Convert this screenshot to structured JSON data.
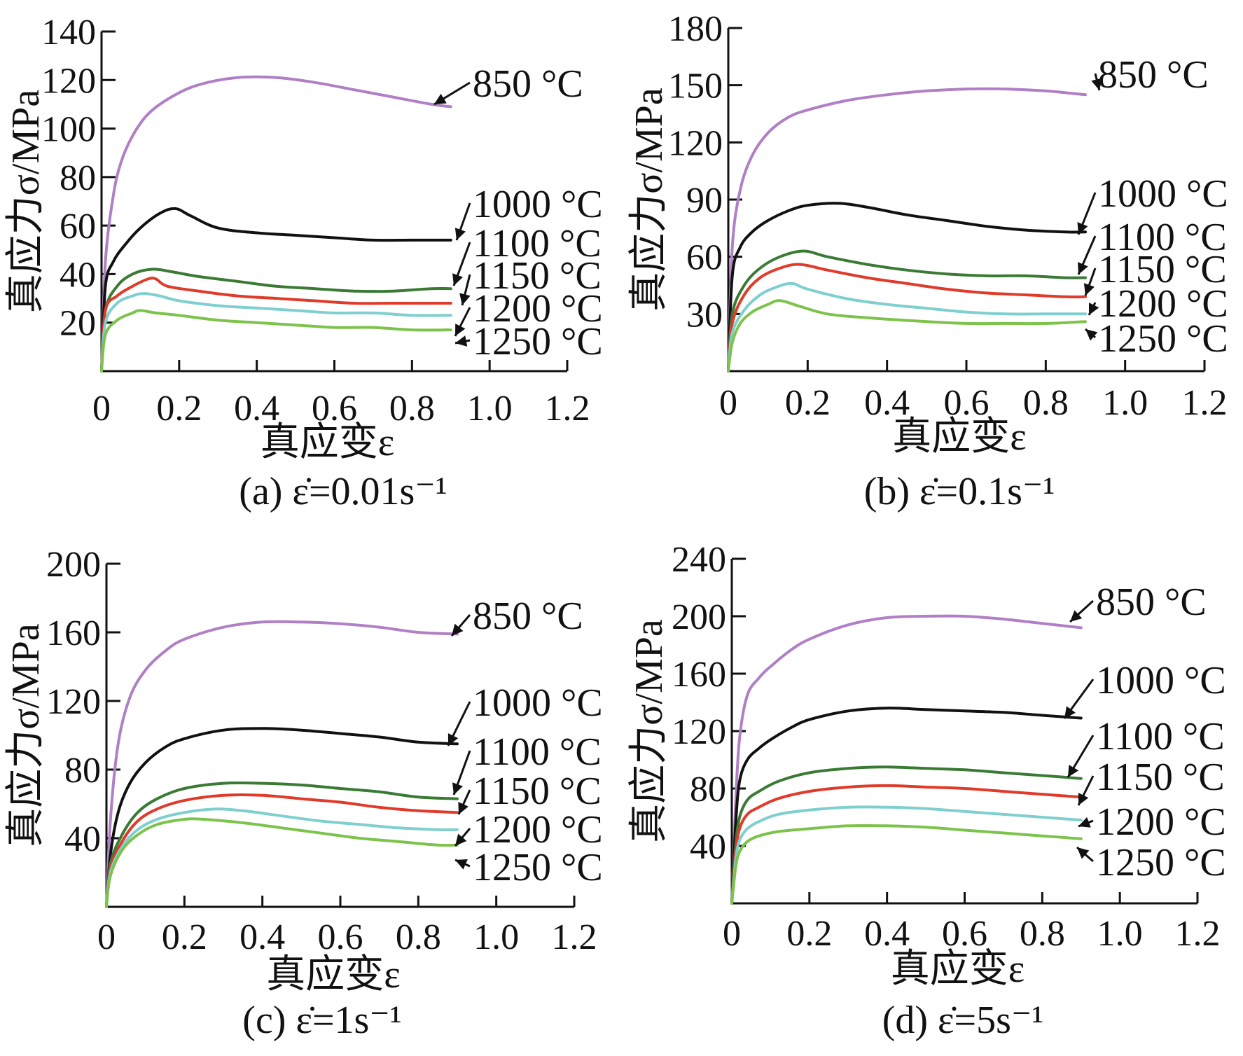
{
  "figure": {
    "series_colors": {
      "850 °C": "#b07fc5",
      "1000 °C": "#111111",
      "1100 °C": "#3a7a35",
      "1150 °C": "#e03a2a",
      "1200 °C": "#7fcfcf",
      "1250 °C": "#7cc34b"
    }
  },
  "chart_data": [
    {
      "id": "a",
      "type": "line",
      "caption": "(a) ε̇=0.01s⁻¹",
      "xlabel": "真应变ε",
      "ylabel": "真应力σ/MPa",
      "xlim": [
        0,
        1.2
      ],
      "ylim": [
        0,
        140
      ],
      "xticks": [
        0,
        0.2,
        0.4,
        0.6,
        0.8,
        1.0,
        1.2
      ],
      "xtick_labels": [
        "0",
        "0.2",
        "0.4",
        "0.6",
        "0.8",
        "1.0",
        "1.2"
      ],
      "yticks": [
        20,
        40,
        60,
        80,
        100,
        120,
        140
      ],
      "ytick_labels": [
        "20",
        "40",
        "60",
        "80",
        "100",
        "120",
        "140"
      ],
      "series": [
        {
          "name": "850 °C",
          "x": [
            0,
            0.01,
            0.03,
            0.05,
            0.08,
            0.12,
            0.18,
            0.25,
            0.35,
            0.45,
            0.55,
            0.65,
            0.75,
            0.85,
            0.9
          ],
          "y": [
            0,
            45,
            72,
            86,
            97,
            106,
            113,
            118,
            121,
            121,
            119,
            116,
            113,
            110,
            109
          ]
        },
        {
          "name": "1000 °C",
          "x": [
            0,
            0.01,
            0.03,
            0.06,
            0.1,
            0.15,
            0.19,
            0.23,
            0.3,
            0.4,
            0.5,
            0.6,
            0.7,
            0.8,
            0.9
          ],
          "y": [
            0,
            35,
            45,
            52,
            59,
            65,
            67,
            64,
            59,
            57,
            56,
            55,
            54,
            54,
            54
          ]
        },
        {
          "name": "1100 °C",
          "x": [
            0,
            0.01,
            0.04,
            0.08,
            0.13,
            0.18,
            0.25,
            0.35,
            0.45,
            0.55,
            0.65,
            0.75,
            0.85,
            0.9
          ],
          "y": [
            0,
            25,
            35,
            40,
            42,
            41,
            39,
            37,
            35,
            34,
            33,
            33,
            34,
            34
          ]
        },
        {
          "name": "1150 °C",
          "x": [
            0,
            0.01,
            0.04,
            0.08,
            0.12,
            0.14,
            0.17,
            0.25,
            0.35,
            0.45,
            0.55,
            0.65,
            0.75,
            0.85,
            0.9
          ],
          "y": [
            0,
            25,
            31,
            35,
            38,
            38,
            35,
            33,
            31,
            30,
            29,
            28,
            28,
            28,
            28
          ]
        },
        {
          "name": "1200 °C",
          "x": [
            0,
            0.01,
            0.04,
            0.08,
            0.11,
            0.15,
            0.2,
            0.3,
            0.4,
            0.5,
            0.6,
            0.7,
            0.8,
            0.9
          ],
          "y": [
            0,
            20,
            28,
            31,
            32,
            31,
            29,
            27,
            26,
            25,
            24,
            24,
            23,
            23
          ]
        },
        {
          "name": "1250 °C",
          "x": [
            0,
            0.01,
            0.04,
            0.08,
            0.1,
            0.14,
            0.2,
            0.3,
            0.4,
            0.5,
            0.6,
            0.7,
            0.8,
            0.9
          ],
          "y": [
            0,
            15,
            21,
            24,
            25,
            24,
            23,
            21,
            20,
            19,
            18,
            18,
            17,
            17
          ]
        }
      ],
      "annotations": [
        "850 °C",
        "1000 °C",
        "1100 °C",
        "1150 °C",
        "1200 °C",
        "1250 °C"
      ]
    },
    {
      "id": "b",
      "type": "line",
      "caption": "(b) ε̇=0.1s⁻¹",
      "xlabel": "真应变ε",
      "ylabel": "真应力σ/MPa",
      "xlim": [
        0,
        1.2
      ],
      "ylim": [
        0,
        180
      ],
      "xticks": [
        0,
        0.2,
        0.4,
        0.6,
        0.8,
        1.0,
        1.2
      ],
      "xtick_labels": [
        "0",
        "0.2",
        "0.4",
        "0.6",
        "0.8",
        "1.0",
        "1.2"
      ],
      "yticks": [
        30,
        60,
        90,
        120,
        150,
        180
      ],
      "ytick_labels": [
        "30",
        "60",
        "90",
        "120",
        "150",
        "180"
      ],
      "series": [
        {
          "name": "850 °C",
          "x": [
            0,
            0.01,
            0.03,
            0.06,
            0.1,
            0.15,
            0.2,
            0.3,
            0.4,
            0.5,
            0.6,
            0.7,
            0.8,
            0.9
          ],
          "y": [
            0,
            65,
            95,
            113,
            125,
            133,
            137,
            142,
            145,
            147,
            148,
            148,
            147,
            145
          ]
        },
        {
          "name": "1000 °C",
          "x": [
            0,
            0.01,
            0.03,
            0.06,
            0.1,
            0.15,
            0.2,
            0.28,
            0.35,
            0.45,
            0.55,
            0.65,
            0.75,
            0.85,
            0.9
          ],
          "y": [
            0,
            50,
            65,
            73,
            79,
            84,
            87,
            88,
            86,
            82,
            79,
            76,
            74,
            73,
            73
          ]
        },
        {
          "name": "1100 °C",
          "x": [
            0,
            0.01,
            0.04,
            0.08,
            0.13,
            0.19,
            0.25,
            0.35,
            0.45,
            0.55,
            0.65,
            0.75,
            0.85,
            0.9
          ],
          "y": [
            0,
            30,
            45,
            54,
            60,
            63,
            60,
            56,
            53,
            51,
            50,
            50,
            49,
            49
          ]
        },
        {
          "name": "1150 °C",
          "x": [
            0,
            0.01,
            0.04,
            0.08,
            0.13,
            0.18,
            0.25,
            0.35,
            0.45,
            0.55,
            0.65,
            0.75,
            0.85,
            0.9
          ],
          "y": [
            0,
            25,
            40,
            49,
            54,
            56,
            53,
            49,
            46,
            43,
            41,
            40,
            39,
            39
          ]
        },
        {
          "name": "1200 °C",
          "x": [
            0,
            0.01,
            0.04,
            0.08,
            0.12,
            0.16,
            0.2,
            0.3,
            0.4,
            0.5,
            0.6,
            0.7,
            0.8,
            0.9
          ],
          "y": [
            0,
            20,
            32,
            40,
            44,
            46,
            43,
            38,
            35,
            33,
            31,
            30,
            30,
            30
          ]
        },
        {
          "name": "1250 °C",
          "x": [
            0,
            0.01,
            0.03,
            0.06,
            0.1,
            0.13,
            0.18,
            0.25,
            0.35,
            0.5,
            0.6,
            0.7,
            0.8,
            0.9
          ],
          "y": [
            0,
            15,
            25,
            31,
            35,
            37,
            34,
            30,
            28,
            26,
            25,
            25,
            25,
            26
          ]
        }
      ],
      "annotations": [
        "850 °C",
        "1000 °C",
        "1100 °C",
        "1150 °C",
        "1200 °C",
        "1250 °C"
      ]
    },
    {
      "id": "c",
      "type": "line",
      "caption": "(c) ε̇=1s⁻¹",
      "xlabel": "真应变ε",
      "ylabel": "真应力σ/MPa",
      "xlim": [
        0,
        1.2
      ],
      "ylim": [
        0,
        200
      ],
      "xticks": [
        0,
        0.2,
        0.4,
        0.6,
        0.8,
        1.0,
        1.2
      ],
      "xtick_labels": [
        "0",
        "0.2",
        "0.4",
        "0.6",
        "0.8",
        "1.0",
        "1.2"
      ],
      "yticks": [
        40,
        80,
        120,
        160,
        200
      ],
      "ytick_labels": [
        "40",
        "80",
        "120",
        "160",
        "200"
      ],
      "series": [
        {
          "name": "850 °C",
          "x": [
            0,
            0.01,
            0.03,
            0.06,
            0.1,
            0.15,
            0.2,
            0.3,
            0.4,
            0.5,
            0.6,
            0.7,
            0.8,
            0.9
          ],
          "y": [
            0,
            50,
            95,
            122,
            138,
            149,
            156,
            163,
            166,
            166,
            165,
            163,
            160,
            159
          ]
        },
        {
          "name": "1000 °C",
          "x": [
            0,
            0.01,
            0.03,
            0.06,
            0.1,
            0.15,
            0.2,
            0.3,
            0.4,
            0.5,
            0.6,
            0.7,
            0.8,
            0.9
          ],
          "y": [
            0,
            30,
            55,
            72,
            84,
            93,
            98,
            103,
            104,
            103,
            101,
            99,
            96,
            95
          ]
        },
        {
          "name": "1100 °C",
          "x": [
            0,
            0.01,
            0.04,
            0.08,
            0.13,
            0.2,
            0.3,
            0.4,
            0.5,
            0.6,
            0.7,
            0.8,
            0.9
          ],
          "y": [
            0,
            25,
            42,
            55,
            63,
            69,
            72,
            72,
            71,
            69,
            67,
            64,
            63
          ]
        },
        {
          "name": "1150 °C",
          "x": [
            0,
            0.01,
            0.04,
            0.08,
            0.13,
            0.2,
            0.3,
            0.4,
            0.5,
            0.6,
            0.7,
            0.8,
            0.9
          ],
          "y": [
            0,
            22,
            38,
            50,
            57,
            62,
            65,
            65,
            63,
            61,
            58,
            56,
            55
          ]
        },
        {
          "name": "1200 °C",
          "x": [
            0,
            0.01,
            0.04,
            0.08,
            0.13,
            0.2,
            0.28,
            0.35,
            0.45,
            0.55,
            0.65,
            0.75,
            0.85,
            0.9
          ],
          "y": [
            0,
            20,
            35,
            45,
            51,
            55,
            57,
            56,
            53,
            50,
            48,
            46,
            45,
            45
          ]
        },
        {
          "name": "1250 °C",
          "x": [
            0,
            0.01,
            0.04,
            0.08,
            0.13,
            0.2,
            0.25,
            0.35,
            0.45,
            0.55,
            0.65,
            0.75,
            0.85,
            0.9
          ],
          "y": [
            0,
            18,
            33,
            42,
            48,
            51,
            51,
            49,
            46,
            43,
            40,
            38,
            36,
            36
          ]
        }
      ],
      "annotations": [
        "850 °C",
        "1000 °C",
        "1100 °C",
        "1150 °C",
        "1200 °C",
        "1250 °C"
      ]
    },
    {
      "id": "d",
      "type": "line",
      "caption": "(d) ε̇=5s⁻¹",
      "xlabel": "真应变ε",
      "ylabel": "真应力σ/MPa",
      "xlim": [
        0,
        1.2
      ],
      "ylim": [
        0,
        240
      ],
      "xticks": [
        0,
        0.2,
        0.4,
        0.6,
        0.8,
        1.0,
        1.2
      ],
      "xtick_labels": [
        "0",
        "0.2",
        "0.4",
        "0.6",
        "0.8",
        "1.0",
        "1.2"
      ],
      "yticks": [
        40,
        80,
        120,
        160,
        200,
        240
      ],
      "ytick_labels": [
        "40",
        "80",
        "120",
        "160",
        "200",
        "240"
      ],
      "series": [
        {
          "name": "850 °C",
          "x": [
            0,
            0.01,
            0.02,
            0.04,
            0.07,
            0.1,
            0.15,
            0.2,
            0.3,
            0.4,
            0.5,
            0.6,
            0.7,
            0.8,
            0.9
          ],
          "y": [
            0,
            70,
            115,
            145,
            157,
            165,
            176,
            184,
            194,
            199,
            200,
            200,
            198,
            195,
            192
          ]
        },
        {
          "name": "1000 °C",
          "x": [
            0,
            0.01,
            0.02,
            0.04,
            0.07,
            0.1,
            0.15,
            0.2,
            0.3,
            0.4,
            0.5,
            0.6,
            0.7,
            0.8,
            0.9
          ],
          "y": [
            0,
            55,
            85,
            100,
            108,
            114,
            122,
            128,
            134,
            136,
            135,
            134,
            133,
            131,
            129
          ]
        },
        {
          "name": "1100 °C",
          "x": [
            0,
            0.01,
            0.02,
            0.04,
            0.07,
            0.12,
            0.2,
            0.3,
            0.4,
            0.5,
            0.6,
            0.7,
            0.8,
            0.9
          ],
          "y": [
            0,
            40,
            60,
            72,
            78,
            85,
            91,
            94,
            95,
            94,
            93,
            91,
            89,
            87
          ]
        },
        {
          "name": "1150 °C",
          "x": [
            0,
            0.01,
            0.02,
            0.04,
            0.07,
            0.12,
            0.2,
            0.3,
            0.4,
            0.5,
            0.6,
            0.7,
            0.8,
            0.9
          ],
          "y": [
            0,
            35,
            52,
            62,
            67,
            73,
            78,
            81,
            82,
            81,
            80,
            78,
            76,
            74
          ]
        },
        {
          "name": "1200 °C",
          "x": [
            0,
            0.01,
            0.02,
            0.04,
            0.07,
            0.12,
            0.2,
            0.3,
            0.4,
            0.5,
            0.6,
            0.7,
            0.8,
            0.9
          ],
          "y": [
            0,
            30,
            44,
            52,
            57,
            62,
            65,
            67,
            67,
            66,
            64,
            62,
            60,
            58
          ]
        },
        {
          "name": "1250 °C",
          "x": [
            0,
            0.01,
            0.02,
            0.04,
            0.07,
            0.12,
            0.2,
            0.3,
            0.4,
            0.5,
            0.6,
            0.7,
            0.8,
            0.9
          ],
          "y": [
            0,
            25,
            36,
            43,
            47,
            50,
            52,
            54,
            54,
            53,
            51,
            49,
            47,
            45
          ]
        }
      ],
      "annotations": [
        "850 °C",
        "1000 °C",
        "1100 °C",
        "1150 °C",
        "1200 °C",
        "1250 °C"
      ]
    }
  ]
}
